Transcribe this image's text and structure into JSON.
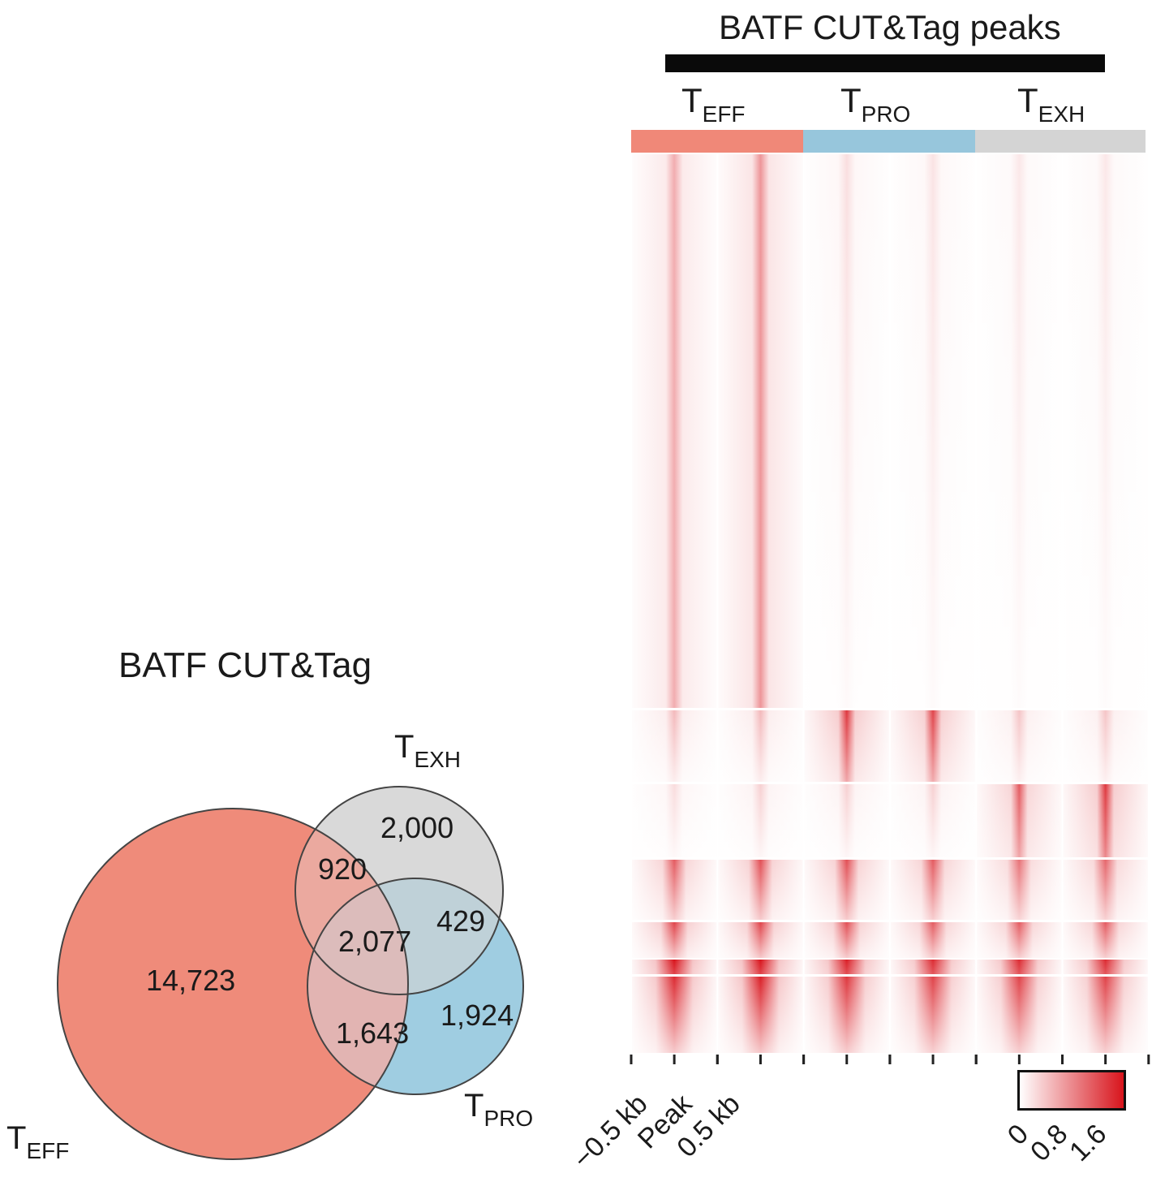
{
  "heatmap": {
    "title": "BATF CUT&Tag peaks",
    "groups": [
      {
        "main": "T",
        "sub": "EFF",
        "color": "#f08878"
      },
      {
        "main": "T",
        "sub": "PRO",
        "color": "#97c6dc"
      },
      {
        "main": "T",
        "sub": "EXH",
        "color": "#d4d4d4"
      }
    ],
    "axis_labels": [
      "−0.5 kb",
      "Peak",
      "0.5 kb"
    ],
    "colorbar": {
      "ticks": [
        "0",
        "0.8",
        "1.6"
      ],
      "low_color": "#ffffff",
      "high_color": "#d8141c"
    }
  },
  "venn": {
    "title": "BATF CUT&Tag",
    "sets": [
      {
        "main": "T",
        "sub": "EFF",
        "color": "#ef8b7a"
      },
      {
        "main": "T",
        "sub": "EXH",
        "color": "#d9d9d9"
      },
      {
        "main": "T",
        "sub": "PRO",
        "color": "#9fcde1"
      }
    ],
    "regions": {
      "eff_only": "14,723",
      "exh_only": "2,000",
      "pro_only": "1,924",
      "eff_exh": "920",
      "exh_pro": "429",
      "eff_pro": "1,643",
      "all": "2,077"
    }
  }
}
